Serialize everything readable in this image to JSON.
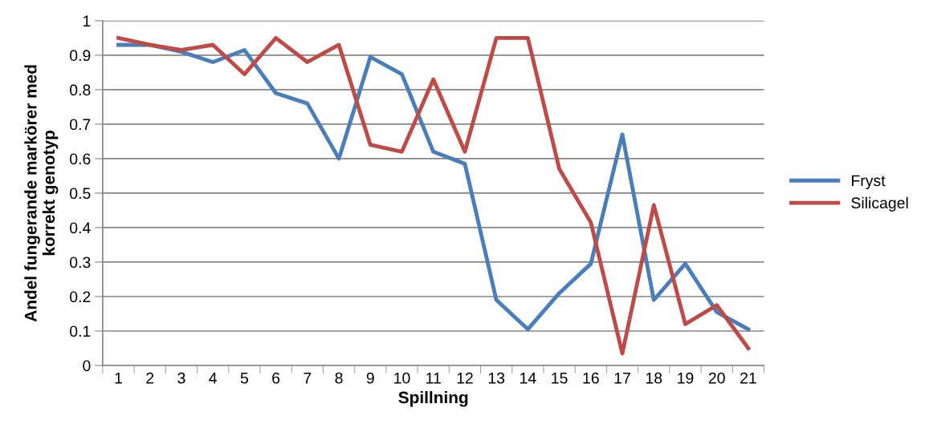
{
  "chart_data": {
    "type": "line",
    "xlabel": "Spillning",
    "ylabel": "Andel fungerande markörer med\nkorrekt genotyp",
    "categories": [
      "1",
      "2",
      "3",
      "4",
      "5",
      "6",
      "7",
      "8",
      "9",
      "10",
      "11",
      "12",
      "13",
      "14",
      "15",
      "16",
      "17",
      "18",
      "19",
      "20",
      "21"
    ],
    "series": [
      {
        "name": "Fryst",
        "color": "#4a7ebb",
        "values": [
          0.93,
          0.93,
          0.91,
          0.88,
          0.915,
          0.79,
          0.76,
          0.6,
          0.895,
          0.845,
          0.62,
          0.585,
          0.19,
          0.105,
          0.21,
          0.295,
          0.67,
          0.19,
          0.295,
          0.155,
          0.105
        ]
      },
      {
        "name": "Silicagel",
        "color": "#be4b48",
        "values": [
          0.95,
          0.93,
          0.915,
          0.93,
          0.845,
          0.95,
          0.88,
          0.93,
          0.64,
          0.62,
          0.83,
          0.62,
          0.95,
          0.95,
          0.57,
          0.415,
          0.035,
          0.465,
          0.12,
          0.175,
          0.05
        ]
      }
    ],
    "ylim": [
      0,
      1
    ],
    "yticks": [
      0,
      0.1,
      0.2,
      0.3,
      0.4,
      0.5,
      0.6,
      0.7,
      0.8,
      0.9,
      1
    ],
    "grid": "y",
    "legend": "right",
    "marker": "none",
    "line_style": "solid"
  }
}
